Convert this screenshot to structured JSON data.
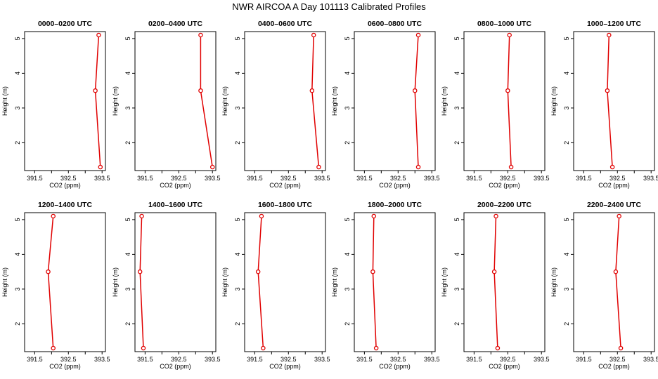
{
  "figure": {
    "title": "NWR AIRCOA A  Day 101113  Calibrated Profiles"
  },
  "colors": {
    "series": "#e00000",
    "axis": "#000000"
  },
  "chart_data": [
    {
      "type": "line",
      "title": "0000–0200 UTC",
      "xlabel": "CO2 (ppm)",
      "ylabel": "Height (m)",
      "xlim": [
        391.2,
        393.6
      ],
      "ylim": [
        1.2,
        5.2
      ],
      "xticks": [
        "391.5",
        "392.5",
        "393.5"
      ],
      "yticks": [
        "2",
        "3",
        "4",
        "5"
      ],
      "x": [
        393.45,
        393.3,
        393.4
      ],
      "y": [
        1.3,
        3.5,
        5.1
      ]
    },
    {
      "type": "line",
      "title": "0200–0400 UTC",
      "xlabel": "CO2 (ppm)",
      "ylabel": "Height (m)",
      "xlim": [
        391.2,
        393.6
      ],
      "ylim": [
        1.2,
        5.2
      ],
      "xticks": [
        "391.5",
        "392.5",
        "393.5"
      ],
      "yticks": [
        "2",
        "3",
        "4",
        "5"
      ],
      "x": [
        393.5,
        393.15,
        393.15
      ],
      "y": [
        1.3,
        3.5,
        5.1
      ]
    },
    {
      "type": "line",
      "title": "0400–0600 UTC",
      "xlabel": "CO2 (ppm)",
      "ylabel": "Height (m)",
      "xlim": [
        391.2,
        393.6
      ],
      "ylim": [
        1.2,
        5.2
      ],
      "xticks": [
        "391.5",
        "392.5",
        "393.5"
      ],
      "yticks": [
        "2",
        "3",
        "4",
        "5"
      ],
      "x": [
        393.4,
        393.2,
        393.25
      ],
      "y": [
        1.3,
        3.5,
        5.1
      ]
    },
    {
      "type": "line",
      "title": "0600–0800 UTC",
      "xlabel": "CO2 (ppm)",
      "ylabel": "Height (m)",
      "xlim": [
        391.2,
        393.6
      ],
      "ylim": [
        1.2,
        5.2
      ],
      "xticks": [
        "391.5",
        "392.5",
        "393.5"
      ],
      "yticks": [
        "2",
        "3",
        "4",
        "5"
      ],
      "x": [
        393.1,
        393.0,
        393.1
      ],
      "y": [
        1.3,
        3.5,
        5.1
      ]
    },
    {
      "type": "line",
      "title": "0800–1000 UTC",
      "xlabel": "CO2 (ppm)",
      "ylabel": "Height (m)",
      "xlim": [
        391.2,
        393.6
      ],
      "ylim": [
        1.2,
        5.2
      ],
      "xticks": [
        "391.5",
        "392.5",
        "393.5"
      ],
      "yticks": [
        "2",
        "3",
        "4",
        "5"
      ],
      "x": [
        392.6,
        392.5,
        392.55
      ],
      "y": [
        1.3,
        3.5,
        5.1
      ]
    },
    {
      "type": "line",
      "title": "1000–1200 UTC",
      "xlabel": "CO2 (ppm)",
      "ylabel": "Height (m)",
      "xlim": [
        391.2,
        393.6
      ],
      "ylim": [
        1.2,
        5.2
      ],
      "xticks": [
        "391.5",
        "392.5",
        "393.5"
      ],
      "yticks": [
        "2",
        "3",
        "4",
        "5"
      ],
      "x": [
        392.35,
        392.2,
        392.25
      ],
      "y": [
        1.3,
        3.5,
        5.1
      ]
    },
    {
      "type": "line",
      "title": "1200–1400 UTC",
      "xlabel": "CO2 (ppm)",
      "ylabel": "Height (m)",
      "xlim": [
        391.2,
        393.6
      ],
      "ylim": [
        1.2,
        5.2
      ],
      "xticks": [
        "391.5",
        "392.5",
        "393.5"
      ],
      "yticks": [
        "2",
        "3",
        "4",
        "5"
      ],
      "x": [
        392.05,
        391.9,
        392.05
      ],
      "y": [
        1.3,
        3.5,
        5.1
      ]
    },
    {
      "type": "line",
      "title": "1400–1600 UTC",
      "xlabel": "CO2 (ppm)",
      "ylabel": "Height (m)",
      "xlim": [
        391.2,
        393.6
      ],
      "ylim": [
        1.2,
        5.2
      ],
      "xticks": [
        "391.5",
        "392.5",
        "393.5"
      ],
      "yticks": [
        "2",
        "3",
        "4",
        "5"
      ],
      "x": [
        391.45,
        391.35,
        391.4
      ],
      "y": [
        1.3,
        3.5,
        5.1
      ]
    },
    {
      "type": "line",
      "title": "1600–1800 UTC",
      "xlabel": "CO2 (ppm)",
      "ylabel": "Height (m)",
      "xlim": [
        391.2,
        393.6
      ],
      "ylim": [
        1.2,
        5.2
      ],
      "xticks": [
        "391.5",
        "392.5",
        "393.5"
      ],
      "yticks": [
        "2",
        "3",
        "4",
        "5"
      ],
      "x": [
        391.75,
        391.6,
        391.7
      ],
      "y": [
        1.3,
        3.5,
        5.1
      ]
    },
    {
      "type": "line",
      "title": "1800–2000 UTC",
      "xlabel": "CO2 (ppm)",
      "ylabel": "Height (m)",
      "xlim": [
        391.2,
        393.6
      ],
      "ylim": [
        1.2,
        5.2
      ],
      "xticks": [
        "391.5",
        "392.5",
        "393.5"
      ],
      "yticks": [
        "2",
        "3",
        "4",
        "5"
      ],
      "x": [
        391.85,
        391.75,
        391.78
      ],
      "y": [
        1.3,
        3.5,
        5.1
      ]
    },
    {
      "type": "line",
      "title": "2000–2200 UTC",
      "xlabel": "CO2 (ppm)",
      "ylabel": "Height (m)",
      "xlim": [
        391.2,
        393.6
      ],
      "ylim": [
        1.2,
        5.2
      ],
      "xticks": [
        "391.5",
        "392.5",
        "393.5"
      ],
      "yticks": [
        "2",
        "3",
        "4",
        "5"
      ],
      "x": [
        392.2,
        392.1,
        392.15
      ],
      "y": [
        1.3,
        3.5,
        5.1
      ]
    },
    {
      "type": "line",
      "title": "2200–2400 UTC",
      "xlabel": "CO2 (ppm)",
      "ylabel": "Height (m)",
      "xlim": [
        391.2,
        393.6
      ],
      "ylim": [
        1.2,
        5.2
      ],
      "xticks": [
        "391.5",
        "392.5",
        "393.5"
      ],
      "yticks": [
        "2",
        "3",
        "4",
        "5"
      ],
      "x": [
        392.6,
        392.45,
        392.55
      ],
      "y": [
        1.3,
        3.5,
        5.1
      ]
    }
  ]
}
